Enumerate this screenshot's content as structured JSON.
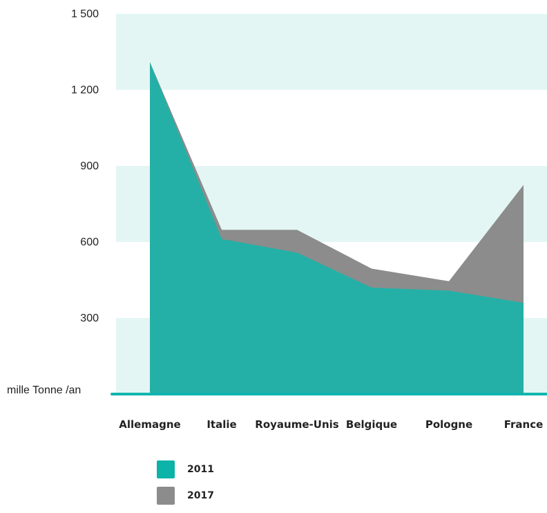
{
  "chart_data": {
    "type": "area",
    "ylabel": "mille Tonne /an",
    "categories": [
      "Allemagne",
      "Italie",
      "Royaume-Unis",
      "Belgique",
      "Pologne",
      "France"
    ],
    "ylim": [
      0,
      1500
    ],
    "yticks": [
      {
        "value": 300,
        "label": "300"
      },
      {
        "value": 600,
        "label": "600"
      },
      {
        "value": 900,
        "label": "900"
      },
      {
        "value": 1200,
        "label": "1 200"
      },
      {
        "value": 1500,
        "label": "1 500"
      }
    ],
    "series": [
      {
        "name": "2011",
        "color": "#1bb3a9",
        "values": [
          1310,
          612,
          558,
          420,
          408,
          360
        ]
      },
      {
        "name": "2017",
        "color": "#8c8c8c",
        "values": [
          1310,
          648,
          648,
          495,
          445,
          825
        ]
      }
    ],
    "band_color": "#e3f6f4",
    "axis_color": "#10b5ae",
    "grid": "alternating bands"
  }
}
